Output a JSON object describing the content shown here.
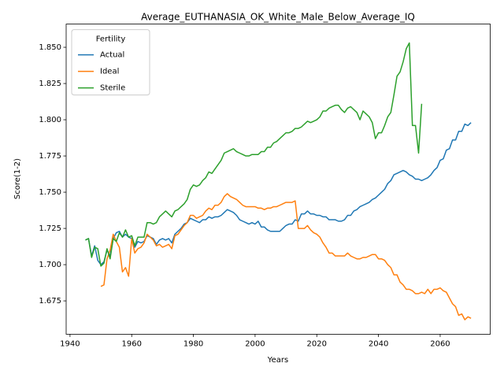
{
  "chart_data": {
    "type": "line",
    "title": "Average_EUTHANASIA_OK_White_Male_Below_Average_IQ",
    "x_label": "Years",
    "y_label": "Score(1-2)",
    "legend_title": "Fertility",
    "legend_loc": "upper left",
    "grid": false,
    "xlim": [
      1938.75,
      2076.25
    ],
    "xticks": [
      1940,
      1960,
      1980,
      2000,
      2020,
      2040,
      2060
    ],
    "ylim": [
      1.652,
      1.866
    ],
    "yticks": [
      1.675,
      {
        "value": 1.7,
        "label": "1.700"
      },
      1.725,
      {
        "value": 1.75,
        "label": "1.750"
      },
      1.775,
      {
        "value": 1.8,
        "label": "1.800"
      },
      1.825,
      {
        "value": 1.85,
        "label": "1.850"
      }
    ],
    "x": [
      1945,
      1946,
      1947,
      1948,
      1949,
      1950,
      1951,
      1952,
      1953,
      1954,
      1955,
      1956,
      1957,
      1958,
      1959,
      1960,
      1961,
      1962,
      1963,
      1964,
      1965,
      1966,
      1967,
      1968,
      1969,
      1970,
      1971,
      1972,
      1973,
      1974,
      1975,
      1976,
      1977,
      1978,
      1979,
      1980,
      1981,
      1982,
      1983,
      1984,
      1985,
      1986,
      1987,
      1988,
      1989,
      1990,
      1991,
      1992,
      1993,
      1994,
      1995,
      1996,
      1997,
      1998,
      1999,
      2000,
      2001,
      2002,
      2003,
      2004,
      2005,
      2006,
      2007,
      2008,
      2009,
      2010,
      2011,
      2012,
      2013,
      2014,
      2015,
      2016,
      2017,
      2018,
      2019,
      2020,
      2021,
      2022,
      2023,
      2024,
      2025,
      2026,
      2027,
      2028,
      2029,
      2030,
      2031,
      2032,
      2033,
      2034,
      2035,
      2036,
      2037,
      2038,
      2039,
      2040,
      2041,
      2042,
      2043,
      2044,
      2045,
      2046,
      2047,
      2048,
      2049,
      2050,
      2051,
      2052,
      2053,
      2054,
      2055,
      2056,
      2057,
      2058,
      2059,
      2060,
      2061,
      2062,
      2063,
      2064,
      2065,
      2066,
      2067,
      2068,
      2069,
      2070
    ],
    "series": [
      {
        "name": "Actual",
        "color": "#1f77b4",
        "values": [
          1.717,
          1.718,
          1.706,
          1.713,
          1.703,
          1.7,
          1.702,
          1.71,
          1.706,
          1.718,
          1.722,
          1.723,
          1.719,
          1.721,
          1.719,
          1.718,
          1.712,
          1.716,
          1.715,
          1.716,
          1.72,
          1.719,
          1.718,
          1.714,
          1.717,
          1.718,
          1.717,
          1.718,
          1.715,
          1.721,
          1.723,
          1.725,
          1.728,
          1.729,
          1.732,
          1.731,
          1.73,
          1.729,
          1.731,
          1.731,
          1.733,
          1.732,
          1.733,
          1.733,
          1.734,
          1.736,
          1.738,
          1.737,
          1.736,
          1.734,
          1.731,
          1.73,
          1.729,
          1.728,
          1.729,
          1.728,
          1.73,
          1.726,
          1.726,
          1.724,
          1.723,
          1.723,
          1.723,
          1.723,
          1.725,
          1.727,
          1.728,
          1.728,
          1.731,
          1.73,
          1.735,
          1.735,
          1.737,
          1.735,
          1.735,
          1.734,
          1.734,
          1.733,
          1.733,
          1.731,
          1.731,
          1.731,
          1.73,
          1.73,
          1.731,
          1.734,
          1.734,
          1.737,
          1.738,
          1.74,
          1.741,
          1.742,
          1.743,
          1.745,
          1.746,
          1.748,
          1.75,
          1.752,
          1.756,
          1.758,
          1.762,
          1.763,
          1.764,
          1.765,
          1.764,
          1.762,
          1.761,
          1.759,
          1.759,
          1.758,
          1.759,
          1.76,
          1.762,
          1.765,
          1.767,
          1.772,
          1.773,
          1.779,
          1.78,
          1.786,
          1.786,
          1.792,
          1.792,
          1.797,
          1.796,
          1.798
        ]
      },
      {
        "name": "Ideal",
        "color": "#ff7f0e",
        "values": [
          null,
          null,
          null,
          null,
          null,
          1.685,
          1.686,
          1.704,
          1.71,
          1.721,
          1.716,
          1.712,
          1.695,
          1.698,
          1.692,
          1.718,
          1.708,
          1.711,
          1.712,
          1.715,
          1.721,
          1.719,
          1.717,
          1.713,
          1.714,
          1.712,
          1.713,
          1.714,
          1.711,
          1.72,
          1.721,
          1.724,
          1.727,
          1.729,
          1.734,
          1.734,
          1.732,
          1.733,
          1.734,
          1.737,
          1.739,
          1.738,
          1.741,
          1.741,
          1.743,
          1.747,
          1.749,
          1.747,
          1.746,
          1.745,
          1.743,
          1.741,
          1.74,
          1.74,
          1.74,
          1.74,
          1.739,
          1.739,
          1.738,
          1.739,
          1.739,
          1.74,
          1.74,
          1.741,
          1.742,
          1.743,
          1.743,
          1.743,
          1.744,
          1.725,
          1.725,
          1.725,
          1.727,
          1.724,
          1.722,
          1.721,
          1.719,
          1.715,
          1.712,
          1.708,
          1.708,
          1.706,
          1.706,
          1.706,
          1.706,
          1.708,
          1.706,
          1.705,
          1.704,
          1.704,
          1.705,
          1.705,
          1.706,
          1.707,
          1.707,
          1.704,
          1.704,
          1.703,
          1.7,
          1.698,
          1.693,
          1.693,
          1.688,
          1.686,
          1.683,
          1.683,
          1.682,
          1.68,
          1.68,
          1.681,
          1.68,
          1.683,
          1.68,
          1.683,
          1.683,
          1.684,
          1.682,
          1.681,
          1.677,
          1.673,
          1.671,
          1.665,
          1.666,
          1.662,
          1.664,
          1.663
        ]
      },
      {
        "name": "Sterile",
        "color": "#2ca02c",
        "values": [
          1.717,
          1.718,
          1.705,
          1.712,
          1.711,
          1.699,
          1.701,
          1.711,
          1.704,
          1.718,
          1.716,
          1.722,
          1.719,
          1.724,
          1.719,
          1.72,
          1.713,
          1.719,
          1.719,
          1.719,
          1.729,
          1.729,
          1.728,
          1.729,
          1.733,
          1.735,
          1.737,
          1.735,
          1.733,
          1.737,
          1.738,
          1.74,
          1.742,
          1.745,
          1.752,
          1.755,
          1.754,
          1.755,
          1.758,
          1.76,
          1.764,
          1.763,
          1.766,
          1.769,
          1.772,
          1.777,
          1.778,
          1.779,
          1.78,
          1.778,
          1.777,
          1.776,
          1.775,
          1.775,
          1.776,
          1.776,
          1.776,
          1.778,
          1.778,
          1.781,
          1.781,
          1.784,
          1.785,
          1.787,
          1.789,
          1.791,
          1.791,
          1.792,
          1.794,
          1.794,
          1.795,
          1.797,
          1.799,
          1.798,
          1.799,
          1.8,
          1.802,
          1.806,
          1.806,
          1.808,
          1.809,
          1.81,
          1.81,
          1.807,
          1.805,
          1.808,
          1.809,
          1.807,
          1.805,
          1.8,
          1.806,
          1.804,
          1.802,
          1.798,
          1.787,
          1.791,
          1.791,
          1.796,
          1.802,
          1.805,
          1.817,
          1.83,
          1.833,
          1.84,
          1.849,
          1.853,
          1.796,
          1.796,
          1.777,
          1.811,
          null,
          null,
          null,
          null,
          null,
          null,
          null,
          null,
          null,
          null,
          null,
          null,
          null,
          null,
          null,
          null
        ]
      }
    ]
  }
}
